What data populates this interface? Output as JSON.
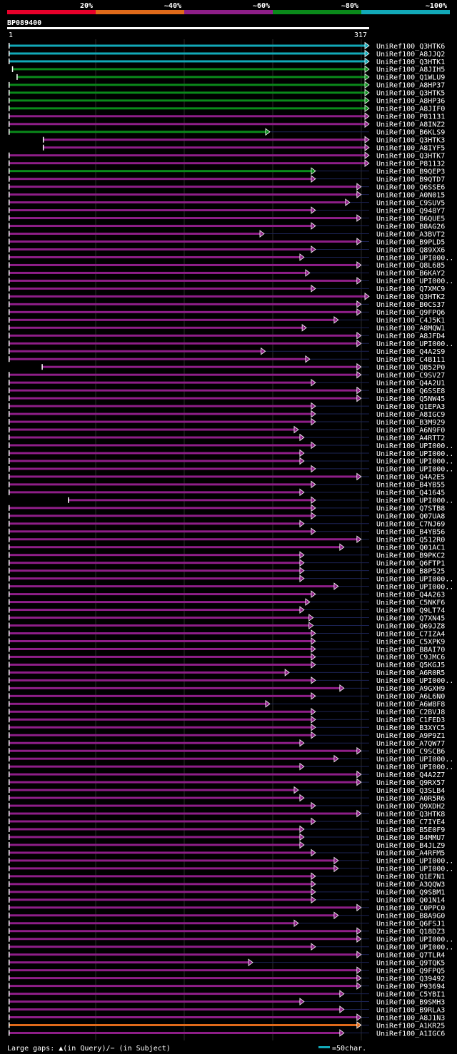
{
  "legend": {
    "bins": [
      {
        "label": "20%",
        "color": "#e8002a"
      },
      {
        "label": "~40%",
        "color": "#e06a1a"
      },
      {
        "label": "~60%",
        "color": "#8e1e88"
      },
      {
        "label": "~80%",
        "color": "#0a8a1a"
      },
      {
        "label": "~100%",
        "color": "#12a9b8"
      }
    ]
  },
  "query": {
    "id": "BP089400",
    "start_label": "1",
    "end_label": "317",
    "length": 317
  },
  "footer": {
    "gaps_text": "Large gaps: ▲(in Query)/− (in Subject)",
    "scale_text": "=50char.",
    "scale_color": "#12a9b8"
  },
  "chart_data": {
    "type": "alignment",
    "x_range": [
      1,
      317
    ],
    "colors": {
      "c100": "#12a9b8",
      "c80": "#0a8a1a",
      "c60": "#8e1e88",
      "c40": "#e06a1a"
    },
    "hits": [
      {
        "label": "UniRef100_Q3HTK6",
        "start": 1,
        "end": 317,
        "color": "c100"
      },
      {
        "label": "UniRef100_A8JJQ2",
        "start": 1,
        "end": 317,
        "color": "c100"
      },
      {
        "label": "UniRef100_Q3HTK1",
        "start": 1,
        "end": 317,
        "color": "c100"
      },
      {
        "label": "UniRef100_A8JIH5",
        "start": 4,
        "end": 317,
        "color": "c80"
      },
      {
        "label": "UniRef100_Q1WLU9",
        "start": 8,
        "end": 317,
        "color": "c80"
      },
      {
        "label": "UniRef100_A8HP37",
        "start": 1,
        "end": 317,
        "color": "c80"
      },
      {
        "label": "UniRef100_Q3HTK5",
        "start": 1,
        "end": 317,
        "color": "c80"
      },
      {
        "label": "UniRef100_A8HP36",
        "start": 1,
        "end": 317,
        "color": "c80"
      },
      {
        "label": "UniRef100_A8JIF0",
        "start": 1,
        "end": 317,
        "color": "c80"
      },
      {
        "label": "UniRef100_P81131",
        "start": 1,
        "end": 317,
        "color": "c60"
      },
      {
        "label": "UniRef100_A8INZ2",
        "start": 1,
        "end": 317,
        "color": "c60"
      },
      {
        "label": "UniRef100_B6KLS9",
        "start": 1,
        "end": 230,
        "color": "c80"
      },
      {
        "label": "UniRef100_Q3HTK3",
        "start": 31,
        "end": 317,
        "color": "c60"
      },
      {
        "label": "UniRef100_A8IYF5",
        "start": 31,
        "end": 317,
        "color": "c60"
      },
      {
        "label": "UniRef100_Q3HTK7",
        "start": 1,
        "end": 317,
        "color": "c60"
      },
      {
        "label": "UniRef100_P81132",
        "start": 1,
        "end": 317,
        "color": "c60"
      },
      {
        "label": "UniRef100_B9QEP3",
        "start": 1,
        "end": 270,
        "color": "c80"
      },
      {
        "label": "UniRef100_B9QTD7",
        "start": 1,
        "end": 270,
        "color": "c60"
      },
      {
        "label": "UniRef100_Q6SSE6",
        "start": 1,
        "end": 310,
        "color": "c60"
      },
      {
        "label": "UniRef100_A0N015",
        "start": 1,
        "end": 310,
        "color": "c60"
      },
      {
        "label": "UniRef100_C9SUV5",
        "start": 1,
        "end": 300,
        "color": "c60"
      },
      {
        "label": "UniRef100_Q948Y7",
        "start": 1,
        "end": 270,
        "color": "c60"
      },
      {
        "label": "UniRef100_B6QUE5",
        "start": 1,
        "end": 310,
        "color": "c60"
      },
      {
        "label": "UniRef100_B8AG26",
        "start": 1,
        "end": 270,
        "color": "c60"
      },
      {
        "label": "UniRef100_A3BVT2",
        "start": 1,
        "end": 225,
        "color": "c60"
      },
      {
        "label": "UniRef100_B9PLD5",
        "start": 1,
        "end": 310,
        "color": "c60"
      },
      {
        "label": "UniRef100_Q89XX6",
        "start": 1,
        "end": 270,
        "color": "c60"
      },
      {
        "label": "UniRef100_UPI000..",
        "start": 1,
        "end": 260,
        "color": "c60"
      },
      {
        "label": "UniRef100_Q8L685",
        "start": 1,
        "end": 310,
        "color": "c60"
      },
      {
        "label": "UniRef100_B6KAY2",
        "start": 1,
        "end": 265,
        "color": "c60"
      },
      {
        "label": "UniRef100_UPI000..",
        "start": 1,
        "end": 310,
        "color": "c60"
      },
      {
        "label": "UniRef100_Q7XMC9",
        "start": 1,
        "end": 270,
        "color": "c60"
      },
      {
        "label": "UniRef100_Q3HTK2",
        "start": 1,
        "end": 317,
        "color": "c60"
      },
      {
        "label": "UniRef100_B0CS37",
        "start": 1,
        "end": 310,
        "color": "c60"
      },
      {
        "label": "UniRef100_Q9FPQ6",
        "start": 1,
        "end": 310,
        "color": "c60"
      },
      {
        "label": "UniRef100_C4J5K1",
        "start": 1,
        "end": 290,
        "color": "c60"
      },
      {
        "label": "UniRef100_A8MQW1",
        "start": 1,
        "end": 262,
        "color": "c60"
      },
      {
        "label": "UniRef100_A8JFD4",
        "start": 1,
        "end": 310,
        "color": "c60"
      },
      {
        "label": "UniRef100_UPI000..",
        "start": 1,
        "end": 310,
        "color": "c60"
      },
      {
        "label": "UniRef100_Q4A2S9",
        "start": 1,
        "end": 226,
        "color": "c60"
      },
      {
        "label": "UniRef100_C4B111",
        "start": 1,
        "end": 265,
        "color": "c60"
      },
      {
        "label": "UniRef100_Q852P0",
        "start": 30,
        "end": 310,
        "color": "c60"
      },
      {
        "label": "UniRef100_C9SV27",
        "start": 1,
        "end": 310,
        "color": "c60"
      },
      {
        "label": "UniRef100_Q4A2U1",
        "start": 1,
        "end": 270,
        "color": "c60"
      },
      {
        "label": "UniRef100_Q6SSE8",
        "start": 1,
        "end": 310,
        "color": "c60"
      },
      {
        "label": "UniRef100_Q5NW45",
        "start": 1,
        "end": 310,
        "color": "c60"
      },
      {
        "label": "UniRef100_Q1EPA3",
        "start": 1,
        "end": 270,
        "color": "c60"
      },
      {
        "label": "UniRef100_A8IGC9",
        "start": 1,
        "end": 270,
        "color": "c60"
      },
      {
        "label": "UniRef100_B3M929",
        "start": 1,
        "end": 270,
        "color": "c60"
      },
      {
        "label": "UniRef100_A6N9F0",
        "start": 1,
        "end": 255,
        "color": "c60"
      },
      {
        "label": "UniRef100_A4RTT2",
        "start": 1,
        "end": 260,
        "color": "c60"
      },
      {
        "label": "UniRef100_UPI000..",
        "start": 1,
        "end": 270,
        "color": "c60"
      },
      {
        "label": "UniRef100_UPI000..",
        "start": 1,
        "end": 260,
        "color": "c60"
      },
      {
        "label": "UniRef100_UPI000..",
        "start": 1,
        "end": 260,
        "color": "c60"
      },
      {
        "label": "UniRef100_UPI000..",
        "start": 1,
        "end": 270,
        "color": "c60"
      },
      {
        "label": "UniRef100_Q4A2E5",
        "start": 1,
        "end": 310,
        "color": "c60"
      },
      {
        "label": "UniRef100_B4YB55",
        "start": 1,
        "end": 270,
        "color": "c60"
      },
      {
        "label": "UniRef100_Q41645",
        "start": 1,
        "end": 260,
        "color": "c60"
      },
      {
        "label": "UniRef100_UPI000..",
        "start": 53,
        "end": 270,
        "color": "c60"
      },
      {
        "label": "UniRef100_Q7STB8",
        "start": 1,
        "end": 270,
        "color": "c60"
      },
      {
        "label": "UniRef100_Q07UA8",
        "start": 1,
        "end": 270,
        "color": "c60"
      },
      {
        "label": "UniRef100_C7NJ69",
        "start": 1,
        "end": 260,
        "color": "c60"
      },
      {
        "label": "UniRef100_B4YB56",
        "start": 1,
        "end": 270,
        "color": "c60"
      },
      {
        "label": "UniRef100_Q512R0",
        "start": 1,
        "end": 310,
        "color": "c60"
      },
      {
        "label": "UniRef100_Q01AC1",
        "start": 1,
        "end": 295,
        "color": "c60"
      },
      {
        "label": "UniRef100_B9PKC2",
        "start": 1,
        "end": 260,
        "color": "c60"
      },
      {
        "label": "UniRef100_Q6FTP1",
        "start": 1,
        "end": 260,
        "color": "c60"
      },
      {
        "label": "UniRef100_B8P525",
        "start": 1,
        "end": 260,
        "color": "c60"
      },
      {
        "label": "UniRef100_UPI000..",
        "start": 1,
        "end": 260,
        "color": "c60"
      },
      {
        "label": "UniRef100_UPI000..",
        "start": 1,
        "end": 290,
        "color": "c60"
      },
      {
        "label": "UniRef100_Q4A263",
        "start": 1,
        "end": 270,
        "color": "c60"
      },
      {
        "label": "UniRef100_C5NKF6",
        "start": 1,
        "end": 265,
        "color": "c60"
      },
      {
        "label": "UniRef100_Q9LT74",
        "start": 1,
        "end": 260,
        "color": "c60"
      },
      {
        "label": "UniRef100_Q7XN45",
        "start": 1,
        "end": 268,
        "color": "c60"
      },
      {
        "label": "UniRef100_Q69JZ8",
        "start": 1,
        "end": 268,
        "color": "c60"
      },
      {
        "label": "UniRef100_C7IZA4",
        "start": 1,
        "end": 270,
        "color": "c60"
      },
      {
        "label": "UniRef100_C5XPK9",
        "start": 1,
        "end": 270,
        "color": "c60"
      },
      {
        "label": "UniRef100_B8AI70",
        "start": 1,
        "end": 270,
        "color": "c60"
      },
      {
        "label": "UniRef100_C9JMC6",
        "start": 1,
        "end": 270,
        "color": "c60"
      },
      {
        "label": "UniRef100_Q5KGJ5",
        "start": 1,
        "end": 270,
        "color": "c60"
      },
      {
        "label": "UniRef100_A6R0R5",
        "start": 1,
        "end": 247,
        "color": "c60"
      },
      {
        "label": "UniRef100_UPI000..",
        "start": 1,
        "end": 270,
        "color": "c60"
      },
      {
        "label": "UniRef100_A9GXH9",
        "start": 1,
        "end": 295,
        "color": "c60"
      },
      {
        "label": "UniRef100_A6L6N0",
        "start": 1,
        "end": 270,
        "color": "c60"
      },
      {
        "label": "UniRef100_A6W8F8",
        "start": 1,
        "end": 230,
        "color": "c60"
      },
      {
        "label": "UniRef100_C2BVJ8",
        "start": 1,
        "end": 270,
        "color": "c60"
      },
      {
        "label": "UniRef100_C1FED3",
        "start": 1,
        "end": 270,
        "color": "c60"
      },
      {
        "label": "UniRef100_B3XYC5",
        "start": 1,
        "end": 270,
        "color": "c60"
      },
      {
        "label": "UniRef100_A9P9Z1",
        "start": 1,
        "end": 270,
        "color": "c60"
      },
      {
        "label": "UniRef100_A7QW77",
        "start": 1,
        "end": 260,
        "color": "c60"
      },
      {
        "label": "UniRef100_C9SCB6",
        "start": 1,
        "end": 310,
        "color": "c60"
      },
      {
        "label": "UniRef100_UPI000..",
        "start": 1,
        "end": 290,
        "color": "c60"
      },
      {
        "label": "UniRef100_UPI000..",
        "start": 1,
        "end": 260,
        "color": "c60"
      },
      {
        "label": "UniRef100_Q4A2Z7",
        "start": 1,
        "end": 310,
        "color": "c60"
      },
      {
        "label": "UniRef100_Q9RX57",
        "start": 1,
        "end": 310,
        "color": "c60"
      },
      {
        "label": "UniRef100_Q3SLB4",
        "start": 1,
        "end": 255,
        "color": "c60"
      },
      {
        "label": "UniRef100_A0R5R6",
        "start": 1,
        "end": 260,
        "color": "c60"
      },
      {
        "label": "UniRef100_Q9XDH2",
        "start": 1,
        "end": 270,
        "color": "c60"
      },
      {
        "label": "UniRef100_Q3HTK8",
        "start": 1,
        "end": 310,
        "color": "c60"
      },
      {
        "label": "UniRef100_C7IYE4",
        "start": 1,
        "end": 270,
        "color": "c60"
      },
      {
        "label": "UniRef100_B5E0F9",
        "start": 1,
        "end": 260,
        "color": "c60"
      },
      {
        "label": "UniRef100_B4MMU7",
        "start": 1,
        "end": 260,
        "color": "c60"
      },
      {
        "label": "UniRef100_B4JLZ9",
        "start": 1,
        "end": 260,
        "color": "c60"
      },
      {
        "label": "UniRef100_A4RFM5",
        "start": 1,
        "end": 270,
        "color": "c60"
      },
      {
        "label": "UniRef100_UPI000..",
        "start": 1,
        "end": 290,
        "color": "c60"
      },
      {
        "label": "UniRef100_UPI000..",
        "start": 1,
        "end": 290,
        "color": "c60"
      },
      {
        "label": "UniRef100_Q1E7N1",
        "start": 1,
        "end": 270,
        "color": "c60"
      },
      {
        "label": "UniRef100_A3QQW3",
        "start": 1,
        "end": 270,
        "color": "c60"
      },
      {
        "label": "UniRef100_Q9SBM1",
        "start": 1,
        "end": 270,
        "color": "c60"
      },
      {
        "label": "UniRef100_Q01N14",
        "start": 1,
        "end": 270,
        "color": "c60"
      },
      {
        "label": "UniRef100_C0PPC0",
        "start": 1,
        "end": 310,
        "color": "c60"
      },
      {
        "label": "UniRef100_B8A9G0",
        "start": 1,
        "end": 290,
        "color": "c60"
      },
      {
        "label": "UniRef100_Q6FSJ1",
        "start": 1,
        "end": 255,
        "color": "c60"
      },
      {
        "label": "UniRef100_Q18DZ3",
        "start": 1,
        "end": 310,
        "color": "c60"
      },
      {
        "label": "UniRef100_UPI000..",
        "start": 1,
        "end": 310,
        "color": "c60"
      },
      {
        "label": "UniRef100_UPI000..",
        "start": 1,
        "end": 270,
        "color": "c60"
      },
      {
        "label": "UniRef100_Q7TLR4",
        "start": 1,
        "end": 310,
        "color": "c60"
      },
      {
        "label": "UniRef100_Q9TQK5",
        "start": 1,
        "end": 215,
        "color": "c60"
      },
      {
        "label": "UniRef100_Q9FPQ5",
        "start": 1,
        "end": 310,
        "color": "c60"
      },
      {
        "label": "UniRef100_Q39492",
        "start": 1,
        "end": 310,
        "color": "c60"
      },
      {
        "label": "UniRef100_P93694",
        "start": 1,
        "end": 310,
        "color": "c60"
      },
      {
        "label": "UniRef100_C5YBI1",
        "start": 1,
        "end": 295,
        "color": "c60"
      },
      {
        "label": "UniRef100_B9SMH3",
        "start": 1,
        "end": 260,
        "color": "c60"
      },
      {
        "label": "UniRef100_B9RLA3",
        "start": 1,
        "end": 295,
        "color": "c60"
      },
      {
        "label": "UniRef100_A8J1N3",
        "start": 1,
        "end": 310,
        "color": "c60"
      },
      {
        "label": "UniRef100_A1KR25",
        "start": 1,
        "end": 310,
        "color": "c40"
      },
      {
        "label": "UniRef100_A1IGC6",
        "start": 1,
        "end": 295,
        "color": "c60"
      }
    ]
  }
}
